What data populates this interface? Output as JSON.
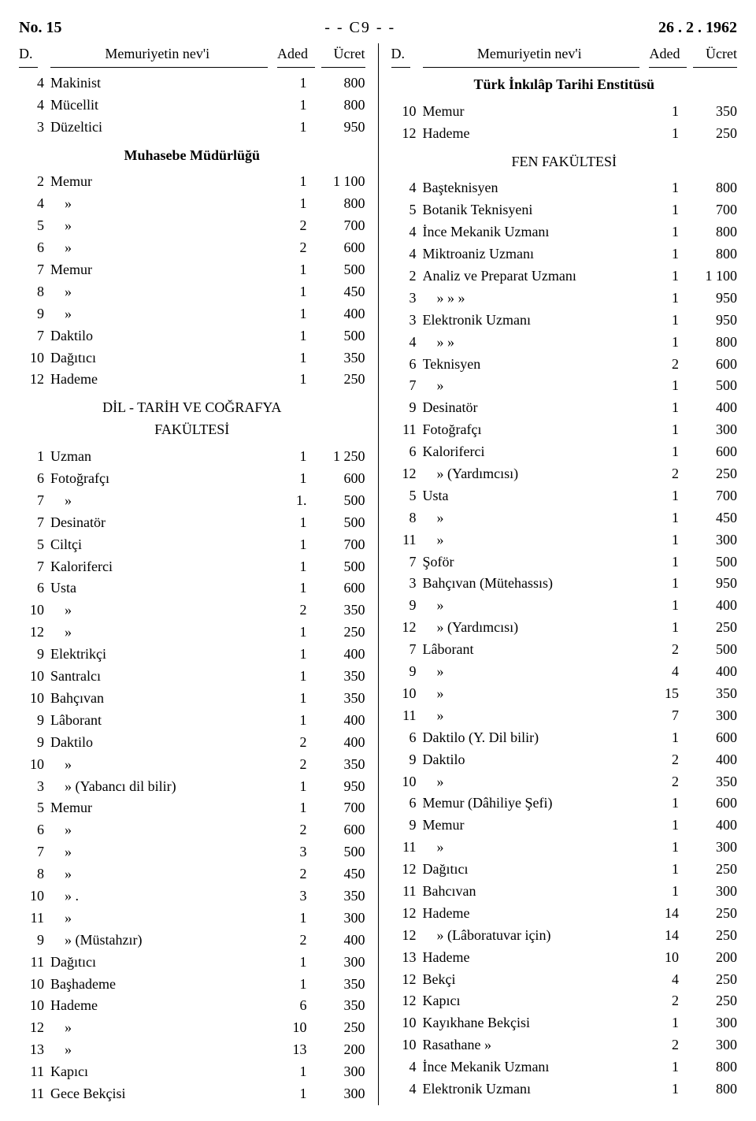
{
  "header": {
    "left": "No. 15",
    "center": "- -  C9  - -",
    "right": "26 . 2 . 1962"
  },
  "colhead": {
    "d": "D.",
    "title": "Memuriyetin nev'i",
    "aded": "Aded",
    "ucret": "Ücret"
  },
  "left": {
    "rows1": [
      {
        "d": "4",
        "t": "Makinist",
        "a": "1",
        "u": "800"
      },
      {
        "d": "4",
        "t": "Mücellit",
        "a": "1",
        "u": "800"
      },
      {
        "d": "3",
        "t": "Düzeltici",
        "a": "1",
        "u": "950"
      }
    ],
    "sec1": "Muhasebe Müdürlüğü",
    "rows2": [
      {
        "d": "2",
        "t": "Memur",
        "a": "1",
        "u": "1 100"
      },
      {
        "d": "4",
        "t": "»",
        "a": "1",
        "u": "800"
      },
      {
        "d": "5",
        "t": "»",
        "a": "2",
        "u": "700"
      },
      {
        "d": "6",
        "t": "»",
        "a": "2",
        "u": "600"
      },
      {
        "d": "7",
        "t": "Memur",
        "a": "1",
        "u": "500"
      },
      {
        "d": "8",
        "t": "»",
        "a": "1",
        "u": "450"
      },
      {
        "d": "9",
        "t": "»",
        "a": "1",
        "u": "400"
      },
      {
        "d": "7",
        "t": "Daktilo",
        "a": "1",
        "u": "500"
      },
      {
        "d": "10",
        "t": "Dağıtıcı",
        "a": "1",
        "u": "350"
      },
      {
        "d": "12",
        "t": "Hademe",
        "a": "1",
        "u": "250"
      }
    ],
    "sec2a": "DİL - TARİH VE COĞRAFYA",
    "sec2b": "FAKÜLTESİ",
    "rows3": [
      {
        "d": "1",
        "t": "Uzman",
        "a": "1",
        "u": "1 250"
      },
      {
        "d": "6",
        "t": "Fotoğrafçı",
        "a": "1",
        "u": "600"
      },
      {
        "d": "7",
        "t": "»",
        "a": "1.",
        "u": "500"
      },
      {
        "d": "7",
        "t": "Desinatör",
        "a": "1",
        "u": "500"
      },
      {
        "d": "5",
        "t": "Ciltçi",
        "a": "1",
        "u": "700"
      },
      {
        "d": "7",
        "t": "Kaloriferci",
        "a": "1",
        "u": "500"
      },
      {
        "d": "6",
        "t": "Usta",
        "a": "1",
        "u": "600"
      },
      {
        "d": "10",
        "t": "»",
        "a": "2",
        "u": "350"
      },
      {
        "d": "12",
        "t": "»",
        "a": "1",
        "u": "250"
      },
      {
        "d": "9",
        "t": "Elektrikçi",
        "a": "1",
        "u": "400"
      },
      {
        "d": "10",
        "t": "Santralcı",
        "a": "1",
        "u": "350"
      },
      {
        "d": "10",
        "t": "Bahçıvan",
        "a": "1",
        "u": "350"
      },
      {
        "d": "9",
        "t": "Lâborant",
        "a": "1",
        "u": "400"
      },
      {
        "d": "9",
        "t": "Daktilo",
        "a": "2",
        "u": "400"
      },
      {
        "d": "10",
        "t": "»",
        "a": "2",
        "u": "350"
      },
      {
        "d": "3",
        "t": "»    (Yabancı dil bilir)",
        "a": "1",
        "u": "950"
      },
      {
        "d": "5",
        "t": "Memur",
        "a": "1",
        "u": "700"
      },
      {
        "d": "6",
        "t": "»",
        "a": "2",
        "u": "600"
      },
      {
        "d": "7",
        "t": "»",
        "a": "3",
        "u": "500"
      },
      {
        "d": "8",
        "t": "»",
        "a": "2",
        "u": "450"
      },
      {
        "d": "10",
        "t": "» .",
        "a": "3",
        "u": "350"
      },
      {
        "d": "11",
        "t": "»",
        "a": "1",
        "u": "300"
      },
      {
        "d": "9",
        "t": "»    (Müstahzır)",
        "a": "2",
        "u": "400"
      },
      {
        "d": "11",
        "t": "Dağıtıcı",
        "a": "1",
        "u": "300"
      },
      {
        "d": "10",
        "t": "Başhademe",
        "a": "1",
        "u": "350"
      },
      {
        "d": "10",
        "t": "Hademe",
        "a": "6",
        "u": "350"
      },
      {
        "d": "12",
        "t": "»",
        "a": "10",
        "u": "250"
      },
      {
        "d": "13",
        "t": "»",
        "a": "13",
        "u": "200"
      },
      {
        "d": "11",
        "t": "Kapıcı",
        "a": "1",
        "u": "300"
      },
      {
        "d": "11",
        "t": "Gece Bekçisi",
        "a": "1",
        "u": "300"
      }
    ]
  },
  "right": {
    "sec1": "Türk İnkılâp Tarihi Enstitüsü",
    "rows1": [
      {
        "d": "10",
        "t": "Memur",
        "a": "1",
        "u": "350"
      },
      {
        "d": "12",
        "t": "Hademe",
        "a": "1",
        "u": "250"
      }
    ],
    "sec2": "FEN FAKÜLTESİ",
    "rows2": [
      {
        "d": "4",
        "t": "Başteknisyen",
        "a": "1",
        "u": "800"
      },
      {
        "d": "5",
        "t": "Botanik Teknisyeni",
        "a": "1",
        "u": "700"
      },
      {
        "d": "4",
        "t": "İnce Mekanik Uzmanı",
        "a": "1",
        "u": "800"
      },
      {
        "d": "4",
        "t": "Miktroaniz Uzmanı",
        "a": "1",
        "u": "800"
      },
      {
        "d": "2",
        "t": "Analiz ve Preparat Uzmanı",
        "a": "1",
        "u": "1 100"
      },
      {
        "d": "3",
        "t": "»          »          »",
        "a": "1",
        "u": "950"
      },
      {
        "d": "3",
        "t": "Elektronik Uzmanı",
        "a": "1",
        "u": "950"
      },
      {
        "d": "4",
        "t": "»          »",
        "a": "1",
        "u": "800"
      },
      {
        "d": "6",
        "t": "Teknisyen",
        "a": "2",
        "u": "600"
      },
      {
        "d": "7",
        "t": "»",
        "a": "1",
        "u": "500"
      },
      {
        "d": "9",
        "t": "Desinatör",
        "a": "1",
        "u": "400"
      },
      {
        "d": "11",
        "t": "Fotoğrafçı",
        "a": "1",
        "u": "300"
      },
      {
        "d": "6",
        "t": "Kaloriferci",
        "a": "1",
        "u": "600"
      },
      {
        "d": "12",
        "t": "»          (Yardımcısı)",
        "a": "2",
        "u": "250"
      },
      {
        "d": "5",
        "t": "Usta",
        "a": "1",
        "u": "700"
      },
      {
        "d": "8",
        "t": "»",
        "a": "1",
        "u": "450"
      },
      {
        "d": "11",
        "t": "»",
        "a": "1",
        "u": "300"
      },
      {
        "d": "7",
        "t": "Şoför",
        "a": "1",
        "u": "500"
      },
      {
        "d": "3",
        "t": "Bahçıvan (Mütehassıs)",
        "a": "1",
        "u": "950"
      },
      {
        "d": "9",
        "t": "»",
        "a": "1",
        "u": "400"
      },
      {
        "d": "12",
        "t": "»          (Yardımcısı)",
        "a": "1",
        "u": "250"
      },
      {
        "d": "7",
        "t": "Lâborant",
        "a": "2",
        "u": "500"
      },
      {
        "d": "9",
        "t": "»",
        "a": "4",
        "u": "400"
      },
      {
        "d": "10",
        "t": "»",
        "a": "15",
        "u": "350"
      },
      {
        "d": "11",
        "t": "»",
        "a": "7",
        "u": "300"
      },
      {
        "d": "6",
        "t": "Daktilo (Y. Dil bilir)",
        "a": "1",
        "u": "600"
      },
      {
        "d": "9",
        "t": "Daktilo",
        "a": "2",
        "u": "400"
      },
      {
        "d": "10",
        "t": "»",
        "a": "2",
        "u": "350"
      },
      {
        "d": "6",
        "t": "Memur (Dâhiliye Şefi)",
        "a": "1",
        "u": "600"
      },
      {
        "d": "9",
        "t": "Memur",
        "a": "1",
        "u": "400"
      },
      {
        "d": "11",
        "t": "»",
        "a": "1",
        "u": "300"
      },
      {
        "d": "12",
        "t": "Dağıtıcı",
        "a": "1",
        "u": "250"
      },
      {
        "d": "11",
        "t": "Bahcıvan",
        "a": "1",
        "u": "300"
      },
      {
        "d": "12",
        "t": "Hademe",
        "a": "14",
        "u": "250"
      },
      {
        "d": "12",
        "t": "»      (Lâboratuvar için)",
        "a": "14",
        "u": "250"
      },
      {
        "d": "13",
        "t": "Hademe",
        "a": "10",
        "u": "200"
      },
      {
        "d": "12",
        "t": "Bekçi",
        "a": "4",
        "u": "250"
      },
      {
        "d": "12",
        "t": "Kapıcı",
        "a": "2",
        "u": "250"
      },
      {
        "d": "10",
        "t": "Kayıkhane Bekçisi",
        "a": "1",
        "u": "300"
      },
      {
        "d": "10",
        "t": "Rasathane     »",
        "a": "2",
        "u": "300"
      },
      {
        "d": "4",
        "t": "İnce Mekanik Uzmanı",
        "a": "1",
        "u": "800"
      },
      {
        "d": "4",
        "t": "Elektronik Uzmanı",
        "a": "1",
        "u": "800"
      }
    ]
  }
}
